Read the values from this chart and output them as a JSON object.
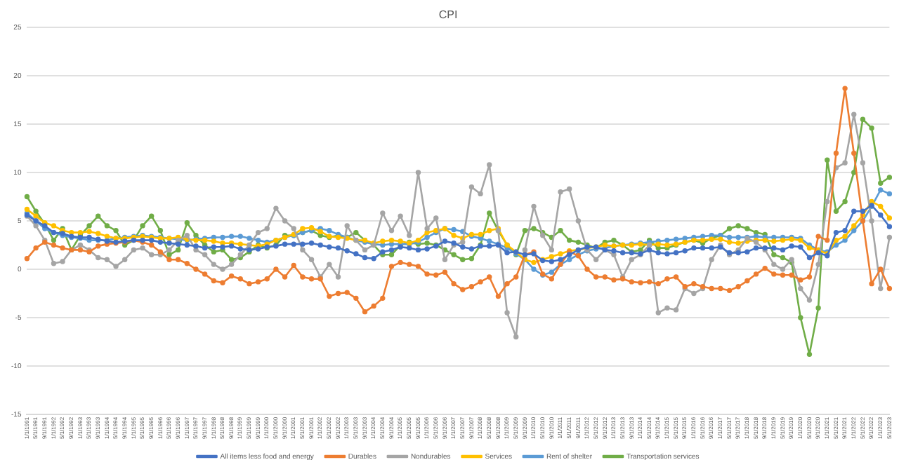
{
  "chart_data": {
    "type": "line",
    "title": "CPI",
    "categories": [
      "1/1/1991",
      "5/1/1991",
      "9/1/1991",
      "1/1/1992",
      "5/1/1992",
      "9/1/1992",
      "1/1/1993",
      "5/1/1993",
      "9/1/1993",
      "1/1/1994",
      "5/1/1994",
      "9/1/1994",
      "1/1/1995",
      "5/1/1995",
      "9/1/1995",
      "1/1/1996",
      "5/1/1996",
      "9/1/1996",
      "1/1/1997",
      "5/1/1997",
      "9/1/1997",
      "1/1/1998",
      "5/1/1998",
      "9/1/1998",
      "1/1/1999",
      "5/1/1999",
      "9/1/1999",
      "1/1/2000",
      "5/1/2000",
      "9/1/2000",
      "1/1/2001",
      "5/1/2001",
      "9/1/2001",
      "1/1/2002",
      "5/1/2002",
      "9/1/2002",
      "1/1/2003",
      "5/1/2003",
      "9/1/2003",
      "1/1/2004",
      "5/1/2004",
      "9/1/2004",
      "1/1/2005",
      "5/1/2005",
      "9/1/2005",
      "1/1/2006",
      "5/1/2006",
      "9/1/2006",
      "1/1/2007",
      "5/1/2007",
      "9/1/2007",
      "1/1/2008",
      "5/1/2008",
      "9/1/2008",
      "1/1/2009",
      "5/1/2009",
      "9/1/2009",
      "1/1/2010",
      "5/1/2010",
      "9/1/2010",
      "1/1/2011",
      "5/1/2011",
      "9/1/2011",
      "1/1/2012",
      "5/1/2012",
      "9/1/2012",
      "1/1/2013",
      "5/1/2013",
      "9/1/2013",
      "1/1/2014",
      "5/1/2014",
      "9/1/2014",
      "1/1/2015",
      "5/1/2015",
      "9/1/2015",
      "1/1/2016",
      "5/1/2016",
      "9/1/2016",
      "1/1/2017",
      "5/1/2017",
      "9/1/2017",
      "1/1/2018",
      "5/1/2018",
      "9/1/2018",
      "1/1/2019",
      "5/1/2019",
      "9/1/2019",
      "1/1/2020",
      "5/1/2020",
      "9/1/2020",
      "1/1/2021",
      "5/1/2021",
      "9/1/2021",
      "1/1/2022",
      "5/1/2022",
      "9/1/2022",
      "1/1/2023",
      "5/1/2023"
    ],
    "series": [
      {
        "name": "All items less food and energy",
        "color": "#4472c4",
        "values": [
          5.6,
          5.0,
          4.5,
          3.8,
          3.7,
          3.4,
          3.3,
          3.3,
          3.1,
          2.9,
          2.8,
          2.9,
          3.0,
          3.0,
          3.0,
          2.8,
          2.7,
          2.6,
          2.5,
          2.4,
          2.2,
          2.3,
          2.3,
          2.4,
          2.1,
          2.0,
          2.1,
          2.3,
          2.4,
          2.6,
          2.6,
          2.6,
          2.7,
          2.5,
          2.3,
          2.2,
          1.9,
          1.6,
          1.2,
          1.1,
          1.8,
          2.0,
          2.3,
          2.2,
          2.0,
          2.1,
          2.4,
          2.9,
          2.7,
          2.3,
          2.1,
          2.4,
          2.4,
          2.5,
          1.7,
          1.8,
          1.5,
          1.6,
          0.9,
          0.8,
          1.0,
          1.5,
          2.0,
          2.3,
          2.3,
          2.0,
          1.9,
          1.7,
          1.7,
          1.6,
          2.0,
          1.7,
          1.6,
          1.7,
          1.9,
          2.2,
          2.2,
          2.2,
          2.3,
          1.7,
          1.7,
          1.8,
          2.2,
          2.2,
          2.2,
          2.0,
          2.4,
          2.3,
          1.2,
          1.7,
          1.4,
          3.8,
          4.0,
          6.0,
          6.0,
          6.6,
          5.6,
          4.4
        ]
      },
      {
        "name": "Durables",
        "color": "#ed7d31",
        "values": [
          1.1,
          2.2,
          2.8,
          2.5,
          2.2,
          2.0,
          2.0,
          1.8,
          2.4,
          2.6,
          2.7,
          2.8,
          3.0,
          2.8,
          2.5,
          1.8,
          1.0,
          1.0,
          0.6,
          0.0,
          -0.5,
          -1.2,
          -1.4,
          -0.7,
          -1.0,
          -1.5,
          -1.3,
          -1.0,
          0.0,
          -0.8,
          0.4,
          -0.8,
          -1.0,
          -1.0,
          -2.8,
          -2.5,
          -2.4,
          -3.0,
          -4.4,
          -3.8,
          -3.0,
          0.3,
          0.7,
          0.5,
          0.3,
          -0.5,
          -0.6,
          -0.3,
          -1.5,
          -2.1,
          -1.8,
          -1.3,
          -0.8,
          -2.8,
          -1.5,
          -0.8,
          1.5,
          1.8,
          -0.5,
          -1.0,
          0.5,
          1.8,
          1.4,
          0.0,
          -0.8,
          -0.8,
          -1.1,
          -1.0,
          -1.3,
          -1.4,
          -1.3,
          -1.5,
          -1.0,
          -0.8,
          -1.8,
          -1.5,
          -1.8,
          -2.0,
          -2.0,
          -2.2,
          -1.8,
          -1.2,
          -0.5,
          0.1,
          -0.5,
          -0.6,
          -0.6,
          -1.1,
          -0.8,
          3.4,
          3.0,
          12.0,
          18.7,
          12.0,
          5.0,
          -1.5,
          0.0,
          -2.0
        ]
      },
      {
        "name": "Nondurables",
        "color": "#a5a5a5",
        "values": [
          5.5,
          4.5,
          3.0,
          0.6,
          0.8,
          2.0,
          2.5,
          2.0,
          1.2,
          1.0,
          0.3,
          1.0,
          2.0,
          2.2,
          1.5,
          1.5,
          2.0,
          3.0,
          3.5,
          2.0,
          1.5,
          0.5,
          0.0,
          0.5,
          1.5,
          2.5,
          3.8,
          4.2,
          6.3,
          5.0,
          4.2,
          2.0,
          1.0,
          -0.8,
          0.5,
          -0.8,
          4.5,
          3.0,
          2.0,
          2.5,
          5.8,
          4.0,
          5.5,
          3.5,
          10.0,
          4.2,
          5.3,
          1.0,
          2.5,
          2.8,
          8.5,
          7.8,
          10.8,
          4.0,
          -4.5,
          -7.0,
          2.0,
          6.5,
          3.5,
          2.0,
          8.0,
          8.3,
          5.0,
          2.0,
          1.0,
          2.0,
          1.5,
          -0.8,
          1.0,
          1.5,
          2.5,
          -4.5,
          -4.0,
          -4.2,
          -2.0,
          -2.5,
          -2.0,
          1.0,
          2.5,
          1.5,
          2.0,
          3.2,
          2.8,
          2.0,
          0.5,
          0.0,
          1.0,
          -2.0,
          -3.2,
          0.5,
          7.0,
          10.5,
          11.0,
          16.0,
          11.0,
          5.0,
          -2.0,
          3.3
        ]
      },
      {
        "name": "Services",
        "color": "#ffc000",
        "values": [
          6.2,
          5.5,
          4.8,
          4.5,
          4.0,
          3.8,
          3.8,
          3.9,
          3.7,
          3.4,
          3.2,
          3.2,
          3.3,
          3.4,
          3.3,
          3.2,
          3.2,
          3.3,
          3.1,
          3.0,
          3.0,
          2.9,
          2.7,
          2.7,
          2.6,
          2.5,
          2.4,
          2.6,
          3.0,
          3.3,
          3.6,
          4.2,
          4.3,
          3.9,
          3.4,
          3.3,
          3.2,
          3.0,
          3.0,
          2.7,
          2.9,
          3.0,
          2.9,
          2.7,
          3.0,
          3.8,
          4.0,
          4.2,
          3.5,
          3.2,
          3.6,
          3.6,
          4.0,
          4.2,
          2.5,
          1.8,
          1.0,
          0.7,
          1.0,
          1.3,
          1.6,
          1.9,
          2.0,
          2.2,
          2.3,
          2.5,
          2.4,
          2.5,
          2.5,
          2.6,
          2.5,
          2.6,
          2.5,
          2.6,
          2.8,
          3.0,
          3.0,
          3.1,
          3.1,
          2.8,
          2.7,
          2.9,
          3.0,
          3.0,
          2.9,
          3.0,
          3.1,
          3.0,
          2.2,
          2.0,
          1.6,
          3.0,
          3.4,
          4.5,
          5.6,
          7.0,
          6.5,
          5.3
        ]
      },
      {
        "name": "Rent of shelter",
        "color": "#5b9bd5",
        "values": [
          5.8,
          5.0,
          4.2,
          3.8,
          3.5,
          3.3,
          3.2,
          3.0,
          3.0,
          3.0,
          3.2,
          3.3,
          3.4,
          3.5,
          3.4,
          3.3,
          3.2,
          3.1,
          3.0,
          3.1,
          3.2,
          3.3,
          3.3,
          3.4,
          3.4,
          3.2,
          3.0,
          2.8,
          3.0,
          3.3,
          3.5,
          3.8,
          4.0,
          4.2,
          4.0,
          3.6,
          3.3,
          3.0,
          2.8,
          2.6,
          2.5,
          2.6,
          2.6,
          2.6,
          2.8,
          3.3,
          3.8,
          4.2,
          4.1,
          3.9,
          3.4,
          3.2,
          2.9,
          2.6,
          2.2,
          1.6,
          1.0,
          0.0,
          -0.6,
          -0.3,
          0.5,
          1.0,
          1.5,
          1.9,
          2.1,
          2.2,
          2.4,
          2.5,
          2.6,
          2.7,
          2.8,
          2.9,
          3.0,
          3.1,
          3.2,
          3.3,
          3.4,
          3.5,
          3.5,
          3.3,
          3.3,
          3.3,
          3.4,
          3.3,
          3.3,
          3.3,
          3.3,
          3.2,
          2.5,
          2.0,
          1.8,
          2.5,
          3.0,
          4.0,
          5.0,
          6.5,
          8.2,
          7.8
        ]
      },
      {
        "name": "Transportation services",
        "color": "#70ad47",
        "values": [
          7.5,
          6.0,
          4.7,
          3.0,
          4.2,
          2.0,
          3.5,
          4.5,
          5.5,
          4.5,
          4.0,
          2.5,
          3.0,
          4.5,
          5.5,
          4.0,
          1.5,
          2.0,
          4.8,
          3.5,
          2.5,
          1.8,
          2.0,
          1.0,
          1.2,
          1.8,
          2.5,
          2.2,
          2.5,
          3.5,
          3.5,
          3.8,
          4.0,
          3.5,
          3.3,
          3.5,
          3.3,
          3.8,
          3.0,
          2.5,
          1.5,
          1.5,
          2.5,
          2.8,
          2.6,
          2.7,
          2.5,
          2.0,
          1.5,
          1.0,
          1.1,
          2.5,
          5.8,
          4.0,
          2.5,
          1.5,
          4.0,
          4.2,
          3.8,
          3.3,
          4.0,
          3.0,
          2.8,
          2.5,
          2.2,
          2.8,
          3.0,
          2.5,
          1.8,
          2.0,
          3.0,
          2.2,
          2.2,
          2.5,
          2.8,
          3.0,
          2.7,
          3.2,
          3.5,
          4.2,
          4.5,
          4.2,
          3.8,
          3.6,
          1.5,
          1.2,
          0.7,
          -5.0,
          -8.8,
          -4.0,
          11.3,
          6.0,
          7.0,
          10.0,
          15.5,
          14.6,
          8.9,
          9.5
        ]
      }
    ],
    "ylim": [
      -15,
      25
    ],
    "yticks": [
      -15,
      -10,
      -5,
      0,
      5,
      10,
      15,
      20,
      25
    ],
    "grid": "y",
    "legend": "bottom",
    "marker": "circle"
  }
}
